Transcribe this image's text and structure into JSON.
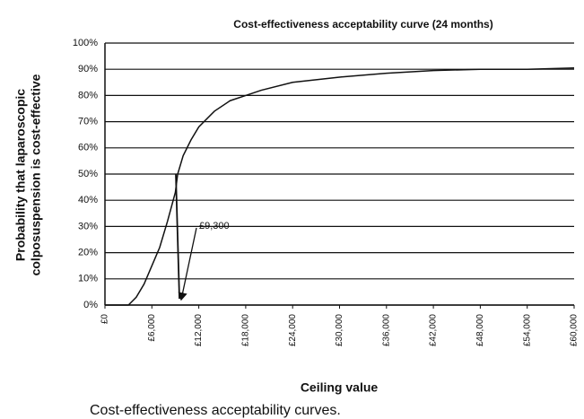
{
  "chart_data": {
    "type": "line",
    "title": "Cost-effectiveness acceptability curve  (24 months)",
    "y_label_lines": [
      "Probability that laparoscopic",
      "colposuspension is cost-effective"
    ],
    "x_label": "Ceiling value",
    "caption": "Cost-effectiveness acceptability curves.",
    "annotation": "£9,300",
    "x": [
      0,
      3000,
      4000,
      5000,
      6000,
      7000,
      8000,
      9000,
      9300,
      10000,
      11000,
      12000,
      14000,
      16000,
      18000,
      20000,
      24000,
      30000,
      36000,
      42000,
      48000,
      54000,
      60000
    ],
    "values": [
      0,
      0,
      3,
      8,
      15,
      22,
      32,
      43,
      50,
      57,
      63,
      68,
      74,
      78,
      80,
      82,
      85,
      87,
      88.5,
      89.5,
      90,
      90,
      90.5
    ],
    "color": "#111111",
    "xlim": [
      0,
      60000
    ],
    "ylim": [
      0,
      100
    ],
    "xticks": [
      {
        "value": 0,
        "label": "£0"
      },
      {
        "value": 6000,
        "label": "£6,000"
      },
      {
        "value": 12000,
        "label": "£12,000"
      },
      {
        "value": 18000,
        "label": "£18,000"
      },
      {
        "value": 24000,
        "label": "£24,000"
      },
      {
        "value": 30000,
        "label": "£30,000"
      },
      {
        "value": 36000,
        "label": "£36,000"
      },
      {
        "value": 42000,
        "label": "£42,000"
      },
      {
        "value": 48000,
        "label": "£48,000"
      },
      {
        "value": 54000,
        "label": "£54,000"
      },
      {
        "value": 60000,
        "label": "£60,000"
      }
    ],
    "yticks": [
      {
        "value": 0,
        "label": "0%"
      },
      {
        "value": 10,
        "label": "10%"
      },
      {
        "value": 20,
        "label": "20%"
      },
      {
        "value": 30,
        "label": "30%"
      },
      {
        "value": 40,
        "label": "40%"
      },
      {
        "value": 50,
        "label": "50%"
      },
      {
        "value": 60,
        "label": "60%"
      },
      {
        "value": 70,
        "label": "70%"
      },
      {
        "value": 80,
        "label": "80%"
      },
      {
        "value": 90,
        "label": "90%"
      },
      {
        "value": 100,
        "label": "100%"
      }
    ],
    "grid": true
  }
}
